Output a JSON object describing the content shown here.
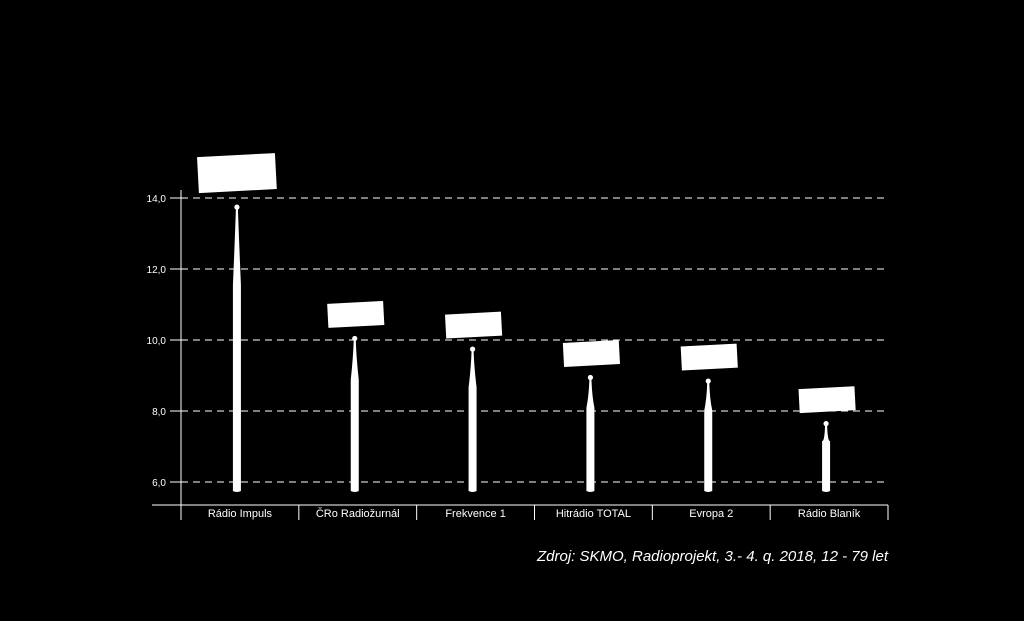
{
  "chart_data": {
    "type": "bar",
    "title": "",
    "xlabel": "",
    "ylabel": "",
    "ylim": [
      5.7,
      14.5
    ],
    "yticks": [
      "6,0",
      "8,0",
      "10,0",
      "12,0",
      "14,0"
    ],
    "ytick_values": [
      6,
      8,
      10,
      12,
      14
    ],
    "grid": true,
    "categories": [
      "Rádio Impuls",
      "ČRo Radiožurnál",
      "Frekvence 1",
      "Hitrádio TOTAL",
      "Evropa 2",
      "Rádio Blaník"
    ],
    "values": [
      13.8,
      10.1,
      9.8,
      9.0,
      8.9,
      7.7
    ],
    "colors": {
      "background": "#000000",
      "bar": "#ffffff",
      "grid": "#ffffff",
      "label_box": "#ffffff"
    }
  },
  "footer": {
    "source": "Zdroj: SKMO, Radioprojekt, 3.- 4. q. 2018, 12 - 79 let"
  }
}
